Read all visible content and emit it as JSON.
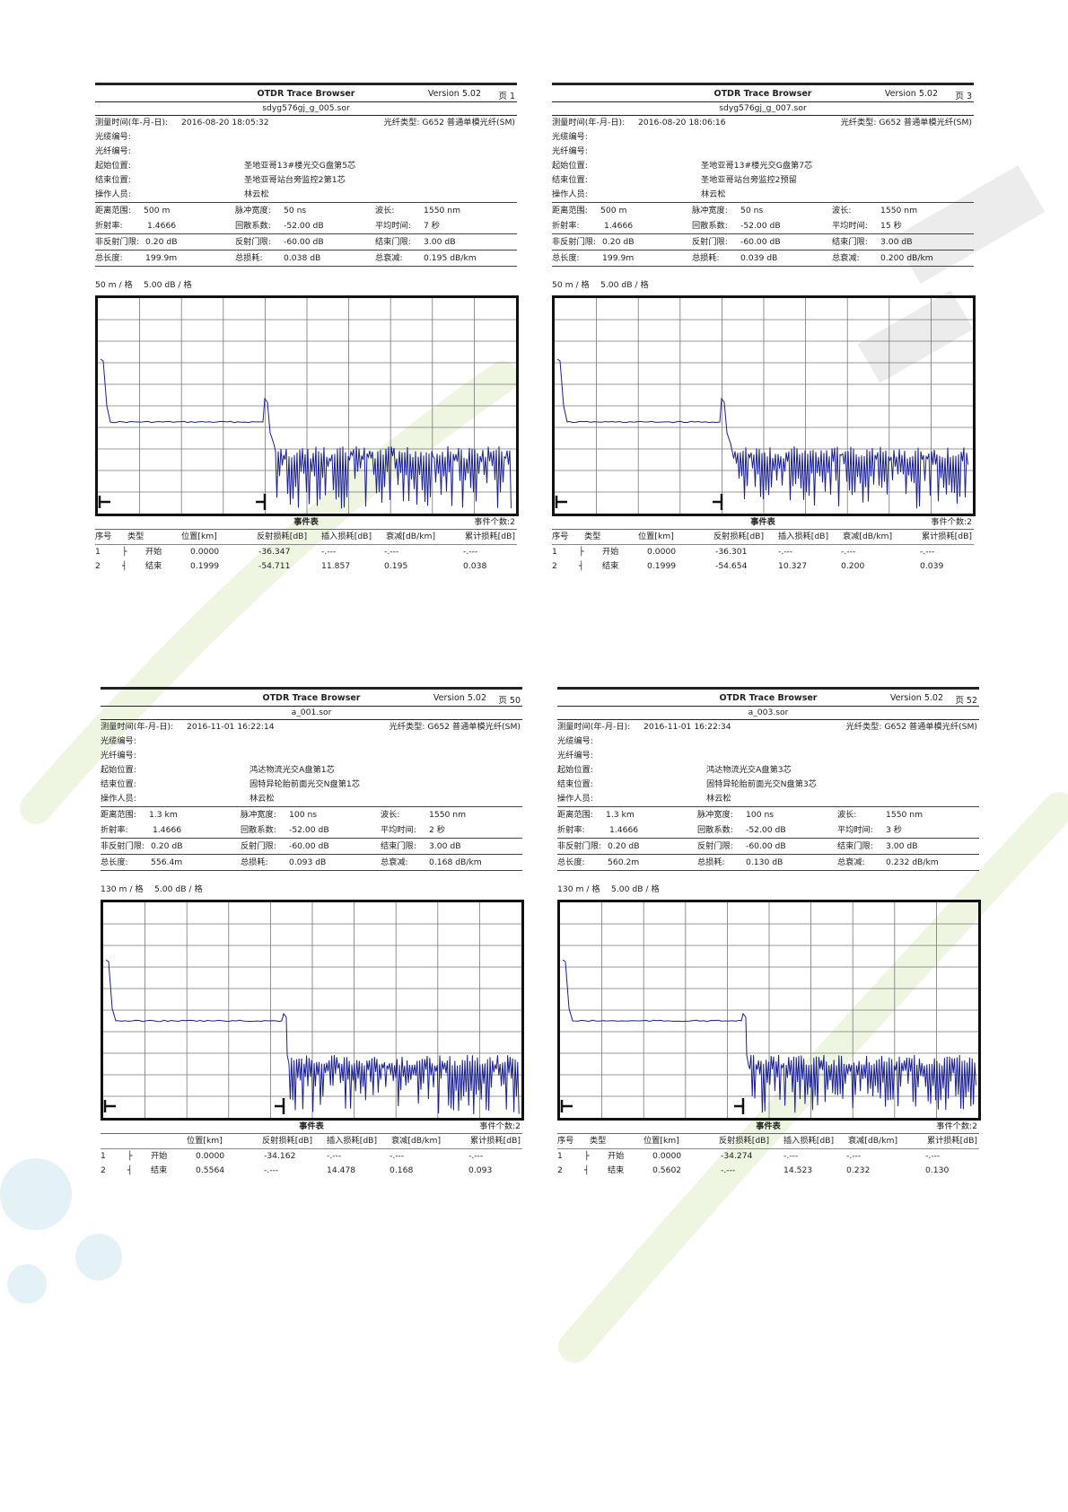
{
  "labels": {
    "app": "OTDR Trace Browser",
    "version": "Version 5.02",
    "measure_time": "测量时间(年-月-日):",
    "cable_no": "光缆编号:",
    "fiber_no": "光纤编号:",
    "start_pos": "起始位置:",
    "end_pos": "结束位置:",
    "operator": "操作人员:",
    "fiber_type_label": "光纤类型:",
    "range": "距离范围:",
    "pulse": "脉冲宽度:",
    "wavelength": "波长:",
    "ior": "折射率:",
    "backscatter": "回散系数:",
    "avg_time": "平均时间:",
    "nonref_thr": "非反射门限:",
    "ref_thr": "反射门限:",
    "end_thr": "结束门限:",
    "total_len": "总长度:",
    "total_loss": "总损耗:",
    "total_atten": "总衰减:",
    "event_table": "事件表",
    "col_no": "序号",
    "col_type": "类型",
    "col_pos": "位置[km]",
    "col_refl": "反射损耗[dB]",
    "col_ins": "插入损耗[dB]",
    "col_att": "衰减[dB/km]",
    "col_cum": "累计损耗[dB]",
    "fiber_type": "G652 普通单模光纤(SM)",
    "db_div": "5.00 dB / 格"
  },
  "panels": [
    {
      "page": "页 1",
      "file": "sdyg576gj_g_005.sor",
      "datetime": "2016-08-20  18:05:32",
      "start": "圣地亚哥13#楼光交G盘第5芯",
      "end": "圣地亚哥站台旁监控2第1芯",
      "operator": "林云松",
      "range": "500 m",
      "pulse": "50 ns",
      "wavelength": "1550 nm",
      "ior": "1.4666",
      "backscatter": "-52.00 dB",
      "avg_time": "7 秒",
      "nonref": "0.20 dB",
      "ref": "-60.00 dB",
      "endthr": "3.00 dB",
      "total_len": "199.9m",
      "total_loss": "0.038 dB",
      "total_atten": "0.195 dB/km",
      "x_div": "50 m / 格",
      "event_count": "事件个数:2",
      "events": [
        {
          "no": "1",
          "type": "开始",
          "pos": "0.0000",
          "refl": "-36.347",
          "ins": "-.---",
          "att": "-.---",
          "cum": "-.---"
        },
        {
          "no": "2",
          "type": "结束",
          "pos": "0.1999",
          "refl": "-54.711",
          "ins": "11.857",
          "att": "0.195",
          "cum": "0.038"
        }
      ]
    },
    {
      "page": "页 3",
      "file": "sdyg576gj_g_007.sor",
      "datetime": "2016-08-20  18:06:16",
      "start": "圣地亚哥13#楼光交G盘第7芯",
      "end": "圣地亚哥站台旁监控2预留",
      "operator": "林云松",
      "range": "500 m",
      "pulse": "50 ns",
      "wavelength": "1550 nm",
      "ior": "1.4666",
      "backscatter": "-52.00 dB",
      "avg_time": "15 秒",
      "nonref": "0.20 dB",
      "ref": "-60.00 dB",
      "endthr": "3.00 dB",
      "total_len": "199.9m",
      "total_loss": "0.039 dB",
      "total_atten": "0.200 dB/km",
      "x_div": "50 m / 格",
      "event_count": "事件个数:2",
      "events": [
        {
          "no": "1",
          "type": "开始",
          "pos": "0.0000",
          "refl": "-36.301",
          "ins": "-.---",
          "att": "-.---",
          "cum": "-.---"
        },
        {
          "no": "2",
          "type": "结束",
          "pos": "0.1999",
          "refl": "-54.654",
          "ins": "10.327",
          "att": "0.200",
          "cum": "0.039"
        }
      ]
    },
    {
      "page": "页 50",
      "file": "a_001.sor",
      "datetime": "2016-11-01  16:22:14",
      "start": "鸿达物流光交A盘第1芯",
      "end": "固特异轮胎前面光交N盘第1芯",
      "operator": "林云松",
      "range": "1.3 km",
      "pulse": "100 ns",
      "wavelength": "1550 nm",
      "ior": "1.4666",
      "backscatter": "-52.00 dB",
      "avg_time": "2 秒",
      "nonref": "0.20 dB",
      "ref": "-60.00 dB",
      "endthr": "3.00 dB",
      "total_len": "556.4m",
      "total_loss": "0.093 dB",
      "total_atten": "0.168 dB/km",
      "x_div": "130 m / 格",
      "event_count": "事件个数:2",
      "events": [
        {
          "no": "1",
          "type": "开始",
          "pos": "0.0000",
          "refl": "-34.162",
          "ins": "-.---",
          "att": "-.---",
          "cum": "-.---"
        },
        {
          "no": "2",
          "type": "结束",
          "pos": "0.5564",
          "refl": "-.---",
          "ins": "14.478",
          "att": "0.168",
          "cum": "0.093"
        }
      ]
    },
    {
      "page": "页 52",
      "file": "a_003.sor",
      "datetime": "2016-11-01  16:22:34",
      "start": "鸿达物流光交A盘第3芯",
      "end": "固特异轮胎前面光交N盘第3芯",
      "operator": "林云松",
      "range": "1.3 km",
      "pulse": "100 ns",
      "wavelength": "1550 nm",
      "ior": "1.4666",
      "backscatter": "-52.00 dB",
      "avg_time": "3 秒",
      "nonref": "0.20 dB",
      "ref": "-60.00 dB",
      "endthr": "3.00 dB",
      "total_len": "560.2m",
      "total_loss": "0.130 dB",
      "total_atten": "0.232 dB/km",
      "x_div": "130 m / 格",
      "event_count": "事件个数:2",
      "events": [
        {
          "no": "1",
          "type": "开始",
          "pos": "0.0000",
          "refl": "-34.274",
          "ins": "-.---",
          "att": "-.---",
          "cum": "-.---"
        },
        {
          "no": "2",
          "type": "结束",
          "pos": "0.5602",
          "refl": "-.---",
          "ins": "14.523",
          "att": "0.232",
          "cum": "0.130"
        }
      ]
    }
  ],
  "colors": {
    "trace": "#1a1f8f",
    "grid": "#777777",
    "watermark": "#e8f3d8"
  }
}
